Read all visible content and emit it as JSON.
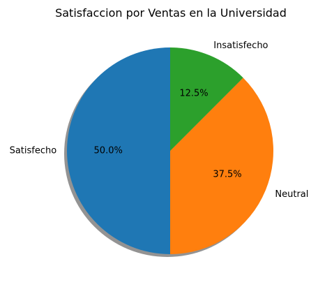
{
  "chart_data": {
    "type": "pie",
    "title": "Satisfaccion por Ventas en la Universidad",
    "categories": [
      "Satisfecho",
      "Neutral",
      "Insatisfecho"
    ],
    "values": [
      50.0,
      37.5,
      12.5
    ],
    "value_labels": [
      "50.0%",
      "37.5%",
      "12.5%"
    ],
    "colors": [
      "#1f77b4",
      "#ff7f0e",
      "#2ca02c"
    ],
    "shadow": true,
    "start_angle_deg": 90,
    "direction": "counterclockwise",
    "legend": "none"
  }
}
